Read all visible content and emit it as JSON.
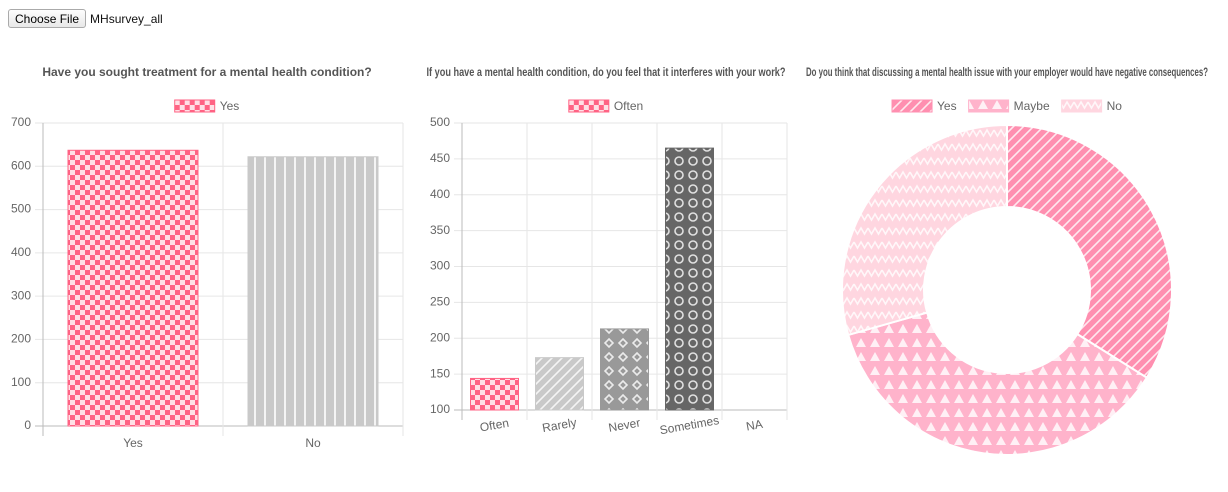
{
  "file_input": {
    "button": "Choose File",
    "file_name": "MHsurvey_all"
  },
  "chart_data": [
    {
      "type": "bar",
      "title": "Have you sought treatment for a mental health condition?",
      "categories": [
        "Yes",
        "No"
      ],
      "series": [
        {
          "name": "Yes",
          "colors": [
            "#ff6384",
            "#c9c9c9"
          ],
          "patterns": [
            "square",
            "line-vertical"
          ],
          "values": [
            637,
            622
          ]
        }
      ],
      "ylim": [
        0,
        700
      ],
      "yticks": [
        0,
        100,
        200,
        300,
        400,
        500,
        600,
        700
      ],
      "grid": true,
      "legend": "top"
    },
    {
      "type": "bar",
      "title": "If you have a mental health condition, do you feel that it interferes with your work?",
      "categories": [
        "Often",
        "Rarely",
        "Never",
        "Sometimes",
        "NA"
      ],
      "series": [
        {
          "name": "Often",
          "colors": [
            "#ff6384",
            "#c9c9c9",
            "#999999",
            "#666666",
            "#444444"
          ],
          "patterns": [
            "square",
            "diagonal",
            "diamond",
            "ring",
            "square"
          ],
          "values": [
            144,
            173,
            213,
            465,
            null
          ]
        }
      ],
      "ylim": [
        100,
        500
      ],
      "yticks": [
        100,
        150,
        200,
        250,
        300,
        350,
        400,
        450,
        500
      ],
      "grid": true,
      "legend": "top"
    },
    {
      "type": "doughnut",
      "title": "Do you think that discussing a mental health issue with your employer would have negative consequences?",
      "categories": [
        "Yes",
        "Maybe",
        "No"
      ],
      "series": [
        {
          "colors": [
            "#ff8fb0",
            "#ffb3cb",
            "#ffd6e0"
          ],
          "patterns": [
            "diagonal",
            "triangle",
            "zigzag"
          ],
          "values": [
            427,
            462,
            370
          ]
        }
      ],
      "legend": "top"
    }
  ]
}
